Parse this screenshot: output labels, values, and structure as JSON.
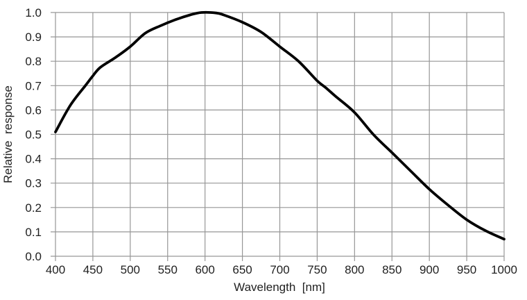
{
  "chart_data": {
    "type": "line",
    "title": "",
    "xlabel": "Wavelength  [nm]",
    "ylabel": "Relative  response",
    "xlim": [
      400,
      1000
    ],
    "ylim": [
      0.0,
      1.0
    ],
    "x_ticks": [
      400,
      450,
      500,
      550,
      600,
      650,
      700,
      750,
      800,
      850,
      900,
      950,
      1000
    ],
    "x_tick_labels": [
      "400",
      "450",
      "500",
      "550",
      "600",
      "650",
      "700",
      "750",
      "800",
      "850",
      "900",
      "950",
      "1000"
    ],
    "y_ticks": [
      0.0,
      0.1,
      0.2,
      0.3,
      0.4,
      0.5,
      0.6,
      0.7,
      0.8,
      0.9,
      1.0
    ],
    "y_tick_labels": [
      "0.0",
      "0.1",
      "0.2",
      "0.3",
      "0.4",
      "0.5",
      "0.6",
      "0.7",
      "0.8",
      "0.9",
      "1.0"
    ],
    "grid": true,
    "legend": false,
    "series": [
      {
        "name": "relative-response",
        "color": "#000000",
        "line_width": 3.8,
        "x": [
          400,
          420,
          440,
          450,
          460,
          480,
          500,
          520,
          540,
          560,
          580,
          595,
          615,
          625,
          650,
          675,
          700,
          725,
          750,
          762,
          775,
          800,
          825,
          850,
          875,
          900,
          925,
          950,
          975,
          1000
        ],
        "y": [
          0.51,
          0.62,
          0.7,
          0.74,
          0.775,
          0.815,
          0.86,
          0.915,
          0.945,
          0.97,
          0.99,
          1.0,
          0.998,
          0.99,
          0.96,
          0.92,
          0.86,
          0.8,
          0.72,
          0.69,
          0.655,
          0.59,
          0.5,
          0.425,
          0.35,
          0.275,
          0.21,
          0.15,
          0.105,
          0.07
        ]
      }
    ]
  },
  "style": {
    "background": "#ffffff",
    "grid_color": "#969696",
    "text_color": "#1f1f1f",
    "curve_color": "#000000"
  }
}
